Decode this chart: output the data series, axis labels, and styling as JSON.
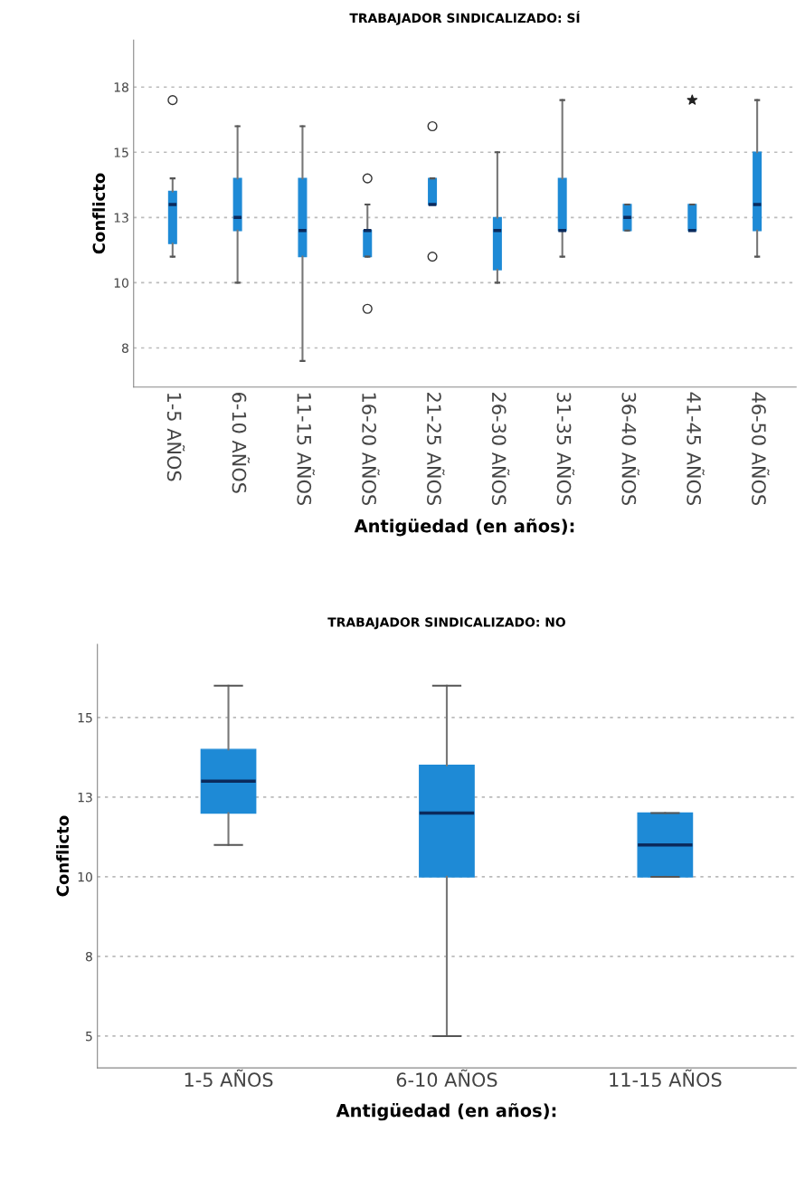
{
  "chart_data": [
    {
      "type": "box",
      "title": "TRABAJADOR SINDICALIZADO: SÍ",
      "xlabel": "Antigüedad (en años):",
      "ylabel": "Conflicto",
      "categories": [
        "1-5 AÑOS",
        "6-10 AÑOS",
        "11-15 AÑOS",
        "16-20 AÑOS",
        "21-25 AÑOS",
        "26-30 AÑOS",
        "31-35 AÑOS",
        "36-40 AÑOS",
        "41-45 AÑOS",
        "46-50 AÑOS"
      ],
      "boxes": [
        {
          "low": 11,
          "q1": 11.5,
          "median": 13,
          "q3": 13.5,
          "high": 14,
          "outliers": [
            17
          ]
        },
        {
          "low": 10,
          "q1": 12,
          "median": 12.5,
          "q3": 14,
          "high": 16
        },
        {
          "low": 7,
          "q1": 11,
          "median": 12,
          "q3": 14,
          "high": 16
        },
        {
          "low": 11,
          "q1": 11,
          "median": 12,
          "q3": 12,
          "high": 13,
          "outliers": [
            14,
            9
          ]
        },
        {
          "low": 13,
          "q1": 13,
          "median": 13,
          "q3": 14,
          "high": 14,
          "outliers": [
            16,
            11
          ]
        },
        {
          "low": 10,
          "q1": 10.5,
          "median": 12,
          "q3": 12.5,
          "high": 15
        },
        {
          "low": 11,
          "q1": 12,
          "median": 12,
          "q3": 14,
          "high": 17
        },
        {
          "low": 12,
          "q1": 12,
          "median": 12.5,
          "q3": 13,
          "high": 13
        },
        {
          "low": 12,
          "q1": 12,
          "median": 12,
          "q3": 13,
          "high": 13
        },
        {
          "low": 11,
          "q1": 12,
          "median": 13,
          "q3": 15,
          "high": 17
        }
      ],
      "series": [
        {
          "type": "scatter",
          "marker": "star",
          "color": "#222222",
          "x": [
            "41-45 AÑOS"
          ],
          "values": [
            17
          ]
        }
      ],
      "color": "#1e8ad6",
      "ylim": [
        6,
        19.3
      ],
      "yticks": [
        {
          "value": 7.5,
          "label": "8"
        },
        10,
        {
          "value": 12.5,
          "label": "13"
        },
        15,
        {
          "value": 17.5,
          "label": "18"
        }
      ],
      "grid": "y"
    },
    {
      "type": "box",
      "title": "TRABAJADOR SINDICALIZADO: NO",
      "xlabel": "Antigüedad (en años):",
      "ylabel": "Conflicto",
      "categories": [
        "1-5 AÑOS",
        "6-10 AÑOS",
        "11-15 AÑOS"
      ],
      "boxes": [
        {
          "low": 11,
          "q1": 12,
          "median": 13,
          "q3": 14,
          "high": 16
        },
        {
          "low": 5,
          "q1": 10,
          "median": 12,
          "q3": 13.5,
          "high": 16
        },
        {
          "low": 10,
          "q1": 10,
          "median": 11,
          "q3": 12,
          "high": 12
        }
      ],
      "color": "#1e8ad6",
      "ylim": [
        4,
        17.3
      ],
      "yticks": [
        5,
        {
          "value": 7.5,
          "label": "8"
        },
        10,
        {
          "value": 12.5,
          "label": "13"
        },
        15
      ],
      "grid": "y"
    }
  ]
}
